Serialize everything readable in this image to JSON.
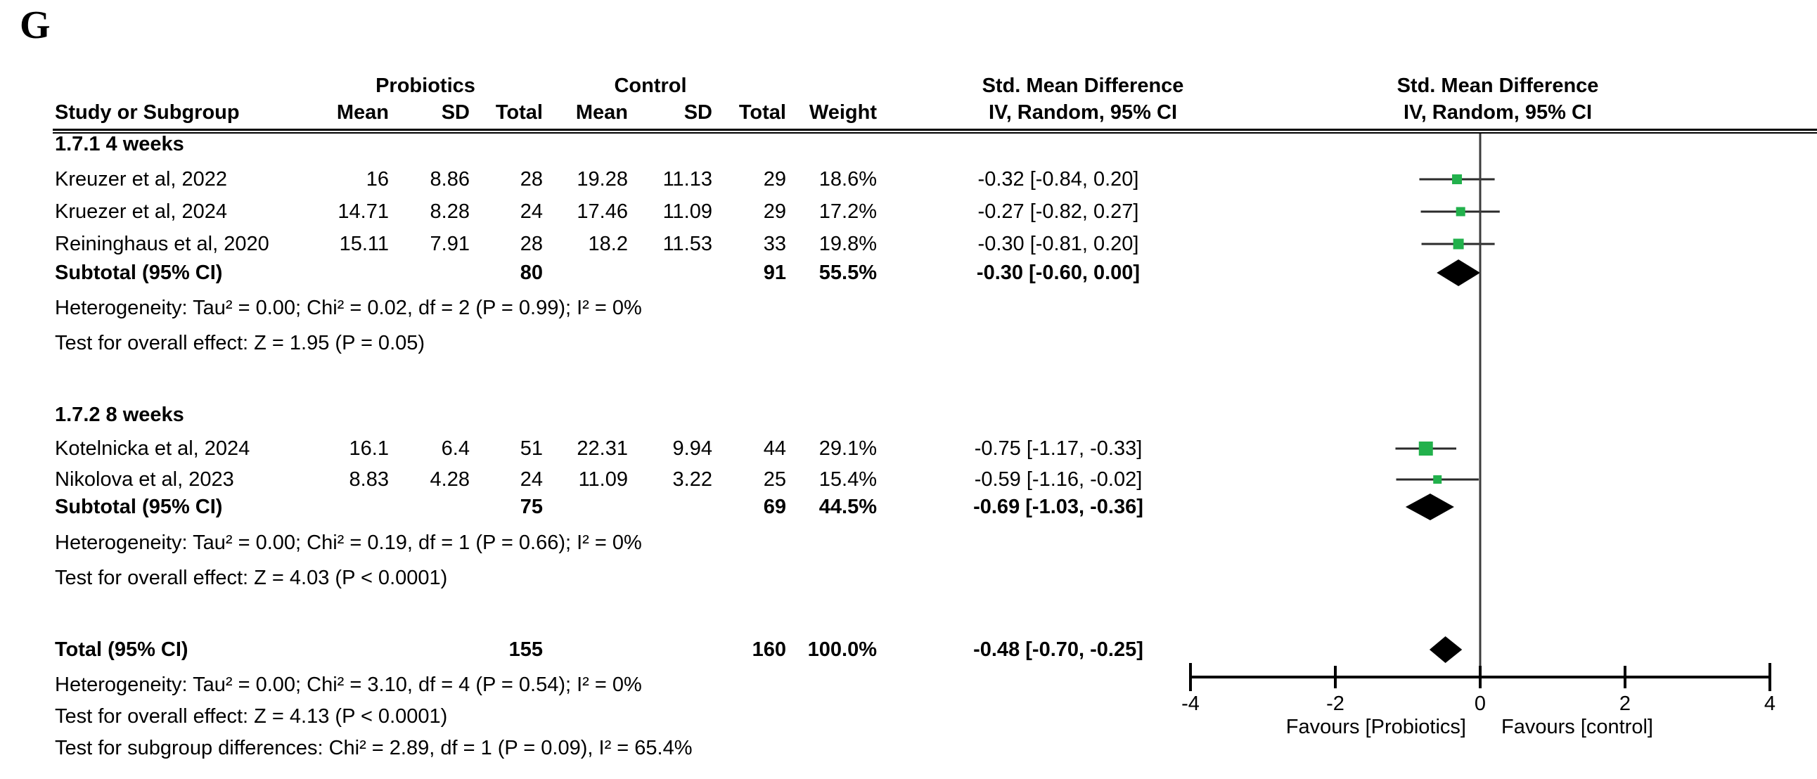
{
  "panel_label": "G",
  "header": {
    "group1": "Probiotics",
    "group2": "Control",
    "study_col": "Study or Subgroup",
    "mean_col": "Mean",
    "sd_col": "SD",
    "total_col": "Total",
    "weight_col": "Weight",
    "effect_title": "Std. Mean Difference",
    "effect_method": "IV, Random, 95% CI",
    "plot_title": "Std. Mean Difference",
    "plot_method": "IV, Random, 95% CI"
  },
  "colors": {
    "marker_green": "#22B14C",
    "diamond_black": "#000000",
    "line_dark": "#2B2B2B",
    "zero_line": "#3C3C3C"
  },
  "chart_data": {
    "type": "forest",
    "effect_measure": "Std. Mean Difference",
    "model": "IV, Random, 95% CI",
    "axis": {
      "xlim": [
        -4,
        4
      ],
      "ticks": [
        -4,
        -2,
        0,
        2,
        4
      ],
      "favours_left": "Favours [Probiotics]",
      "favours_right": "Favours [control]"
    },
    "subgroups": [
      {
        "label": "1.7.1 4 weeks",
        "studies": [
          {
            "name": "Kreuzer et al, 2022",
            "exp_mean": "16",
            "exp_sd": "8.86",
            "exp_total": "28",
            "ctl_mean": "19.28",
            "ctl_sd": "11.13",
            "ctl_total": "29",
            "weight": "18.6%",
            "ci_text": "-0.32 [-0.84, 0.20]",
            "est": -0.32,
            "lo": -0.84,
            "hi": 0.2
          },
          {
            "name": "Kruezer et al, 2024",
            "exp_mean": "14.71",
            "exp_sd": "8.28",
            "exp_total": "24",
            "ctl_mean": "17.46",
            "ctl_sd": "11.09",
            "ctl_total": "29",
            "weight": "17.2%",
            "ci_text": "-0.27 [-0.82, 0.27]",
            "est": -0.27,
            "lo": -0.82,
            "hi": 0.27
          },
          {
            "name": "Reininghaus et al, 2020",
            "exp_mean": "15.11",
            "exp_sd": "7.91",
            "exp_total": "28",
            "ctl_mean": "18.2",
            "ctl_sd": "11.53",
            "ctl_total": "33",
            "weight": "19.8%",
            "ci_text": "-0.30 [-0.81, 0.20]",
            "est": -0.3,
            "lo": -0.81,
            "hi": 0.2
          }
        ],
        "subtotal": {
          "label": "Subtotal (95% CI)",
          "exp_total": "80",
          "ctl_total": "91",
          "weight": "55.5%",
          "ci_text": "-0.30 [-0.60, 0.00]",
          "est": -0.3,
          "lo": -0.6,
          "hi": 0.0
        },
        "heterogeneity": "Heterogeneity: Tau² = 0.00; Chi² = 0.02, df = 2 (P = 0.99); I² = 0%",
        "overall_effect": "Test for overall effect: Z = 1.95 (P = 0.05)"
      },
      {
        "label": "1.7.2 8 weeks",
        "studies": [
          {
            "name": "Kotelnicka et al, 2024",
            "exp_mean": "16.1",
            "exp_sd": "6.4",
            "exp_total": "51",
            "ctl_mean": "22.31",
            "ctl_sd": "9.94",
            "ctl_total": "44",
            "weight": "29.1%",
            "ci_text": "-0.75 [-1.17, -0.33]",
            "est": -0.75,
            "lo": -1.17,
            "hi": -0.33
          },
          {
            "name": "Nikolova et al, 2023",
            "exp_mean": "8.83",
            "exp_sd": "4.28",
            "exp_total": "24",
            "ctl_mean": "11.09",
            "ctl_sd": "3.22",
            "ctl_total": "25",
            "weight": "15.4%",
            "ci_text": "-0.59 [-1.16, -0.02]",
            "est": -0.59,
            "lo": -1.16,
            "hi": -0.02
          }
        ],
        "subtotal": {
          "label": "Subtotal (95% CI)",
          "exp_total": "75",
          "ctl_total": "69",
          "weight": "44.5%",
          "ci_text": "-0.69 [-1.03, -0.36]",
          "est": -0.69,
          "lo": -1.03,
          "hi": -0.36
        },
        "heterogeneity": "Heterogeneity: Tau² = 0.00; Chi² = 0.19, df = 1 (P = 0.66); I² = 0%",
        "overall_effect": "Test for overall effect: Z = 4.03 (P < 0.0001)"
      }
    ],
    "total": {
      "label": "Total (95% CI)",
      "exp_total": "155",
      "ctl_total": "160",
      "weight": "100.0%",
      "ci_text": "-0.48 [-0.70, -0.25]",
      "est": -0.48,
      "lo": -0.7,
      "hi": -0.25
    },
    "total_heterogeneity": "Heterogeneity: Tau² = 0.00; Chi² = 3.10, df = 4 (P = 0.54); I² = 0%",
    "total_overall_effect": "Test for overall effect: Z = 4.13 (P < 0.0001)",
    "subgroup_differences": "Test for subgroup differences: Chi² = 2.89, df = 1 (P = 0.09), I² = 65.4%"
  }
}
